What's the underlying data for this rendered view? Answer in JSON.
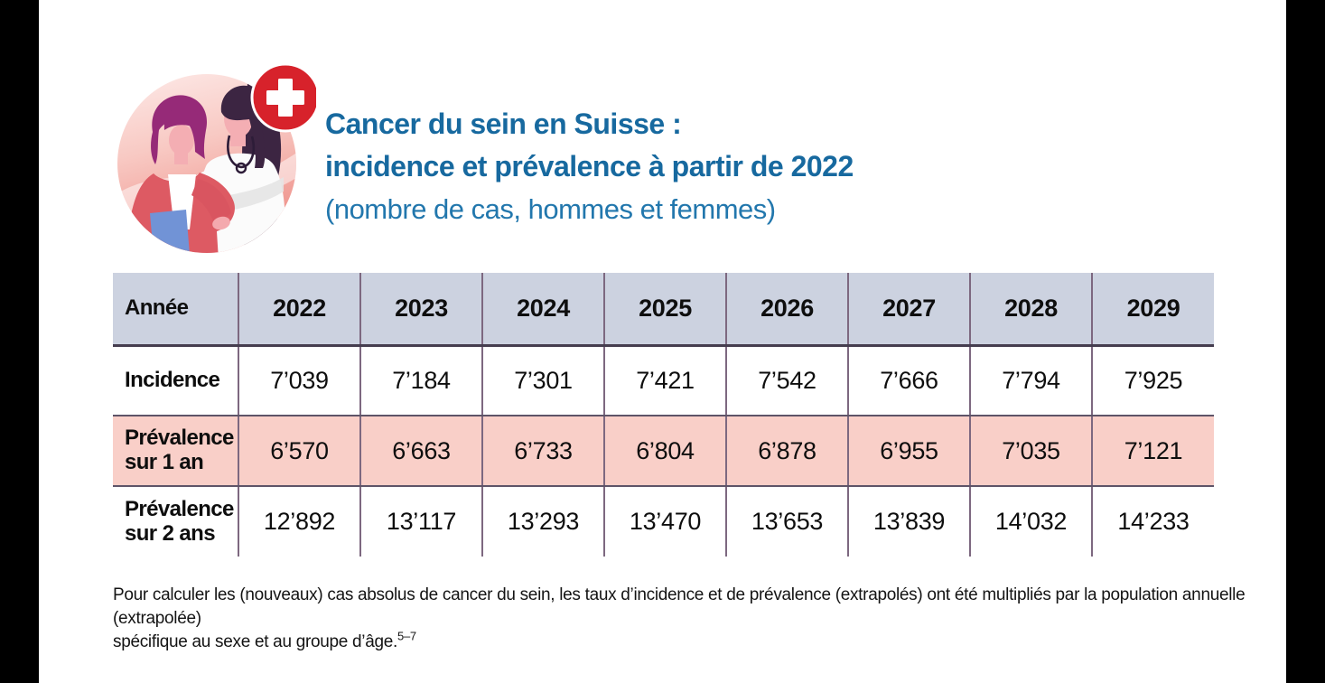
{
  "page": {
    "letterbox_color": "#000000",
    "background": "#ffffff"
  },
  "header": {
    "title_line1": "Cancer du sein en Suisse :",
    "title_line2": "incidence et prévalence à partir de 2022",
    "subtitle": "(nombre de cas, hommes et femmes)",
    "title_color": "#17699f",
    "subtitle_color": "#2277ad",
    "illustration": {
      "name": "patient-and-doctor",
      "badge": "swiss-cross",
      "badge_color": "#d7222b"
    }
  },
  "chart_data": {
    "type": "table",
    "title": "Cancer du sein en Suisse : incidence et prévalence à partir de 2022 (nombre de cas, hommes et femmes)",
    "columns": [
      "Année",
      "2022",
      "2023",
      "2024",
      "2025",
      "2026",
      "2027",
      "2028",
      "2029"
    ],
    "rows": [
      {
        "label": "Incidence",
        "highlight": false,
        "values": [
          "7’039",
          "7’184",
          "7’301",
          "7’421",
          "7’542",
          "7’666",
          "7’794",
          "7’925"
        ]
      },
      {
        "label": "Prévalence sur 1 an",
        "highlight": true,
        "values": [
          "6’570",
          "6’663",
          "6’733",
          "6’804",
          "6’878",
          "6’955",
          "7’035",
          "7’121"
        ]
      },
      {
        "label": "Prévalence sur 2 ans",
        "highlight": false,
        "values": [
          "12’892",
          "13’117",
          "13’293",
          "13’470",
          "13’653",
          "13’839",
          "14’032",
          "14’233"
        ]
      }
    ],
    "styles": {
      "header_bg": "#ccd2e0",
      "highlight_bg": "#f9cfc8",
      "grid_color": "#7d6880"
    },
    "layout_hints": {
      "grid": "on",
      "first_column_is_row_labels": true
    }
  },
  "footnote": {
    "line1": "Pour calculer les (nouveaux) cas absolus de cancer du sein, les taux d’incidence et de prévalence (extrapolés) ont été multipliés par la population annuelle (extrapolée)",
    "line2": "spécifique au sexe et au groupe d’âge.",
    "reference": "5–7"
  }
}
